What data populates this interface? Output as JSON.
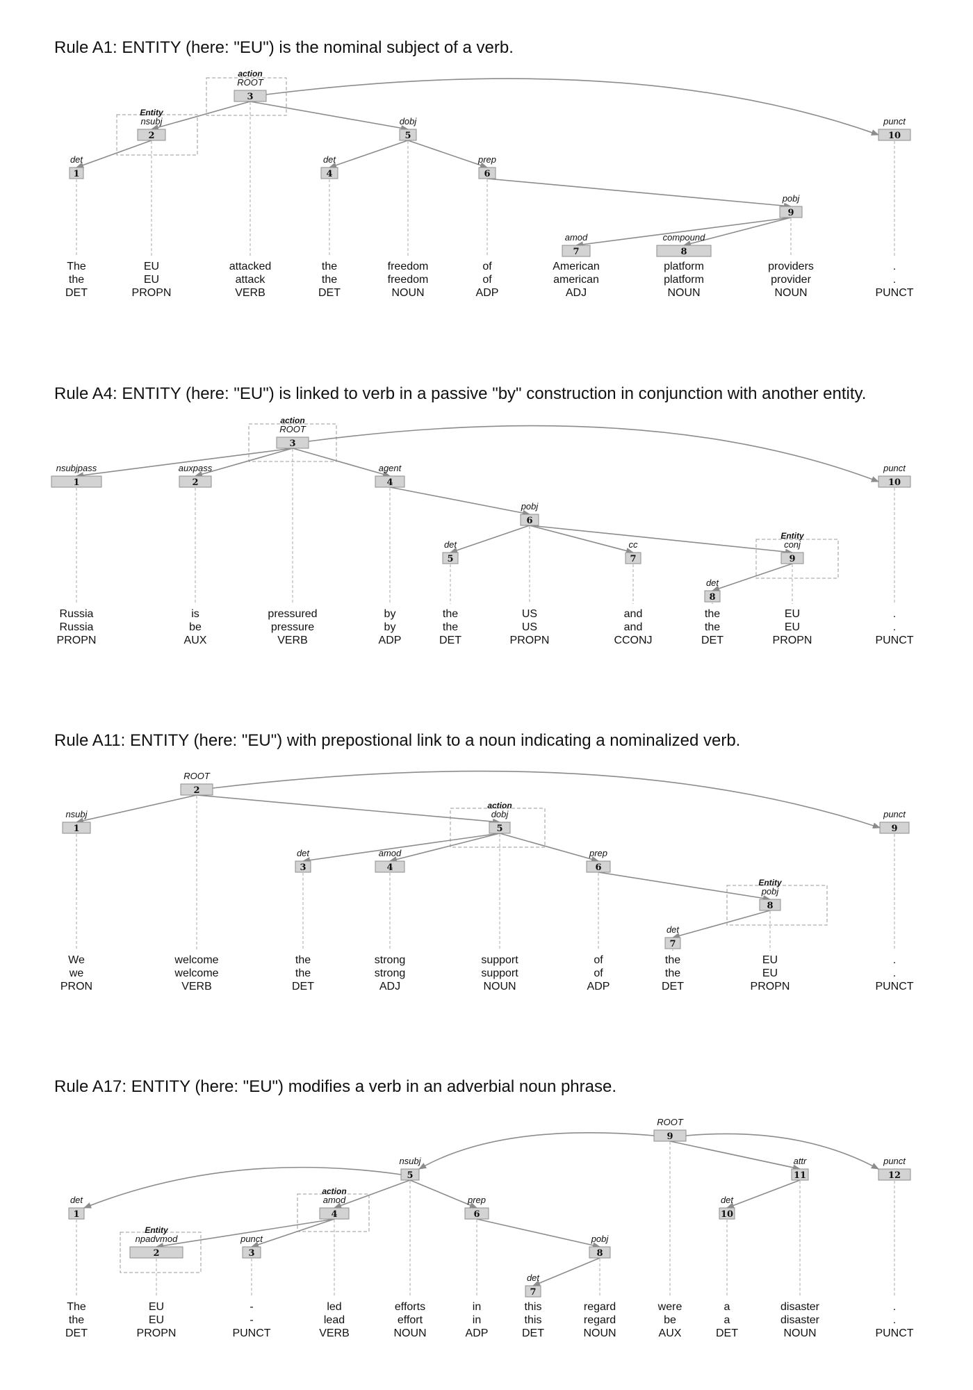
{
  "diagrams": [
    {
      "title": "Rule A1: ENTITY (here: \"EU\") is the nominal subject of a verb.",
      "tokens": [
        {
          "i": "1",
          "dep": "det",
          "text": "The",
          "lemma": "the",
          "pos": "DET"
        },
        {
          "i": "2",
          "dep": "nsubj",
          "tag": "Entity",
          "text": "EU",
          "lemma": "EU",
          "pos": "PROPN"
        },
        {
          "i": "3",
          "dep": "ROOT",
          "tag": "action",
          "text": "attacked",
          "lemma": "attack",
          "pos": "VERB"
        },
        {
          "i": "4",
          "dep": "det",
          "text": "the",
          "lemma": "the",
          "pos": "DET"
        },
        {
          "i": "5",
          "dep": "dobj",
          "text": "freedom",
          "lemma": "freedom",
          "pos": "NOUN"
        },
        {
          "i": "6",
          "dep": "prep",
          "text": "of",
          "lemma": "of",
          "pos": "ADP"
        },
        {
          "i": "7",
          "dep": "amod",
          "text": "American",
          "lemma": "american",
          "pos": "ADJ"
        },
        {
          "i": "8",
          "dep": "compound",
          "text": "platform",
          "lemma": "platform",
          "pos": "NOUN"
        },
        {
          "i": "9",
          "dep": "pobj",
          "text": "providers",
          "lemma": "provider",
          "pos": "NOUN"
        },
        {
          "i": "10",
          "dep": "punct",
          "text": ".",
          "lemma": ".",
          "pos": "PUNCT"
        }
      ],
      "edges": [
        [
          3,
          2
        ],
        [
          2,
          1
        ],
        [
          3,
          5
        ],
        [
          5,
          4
        ],
        [
          5,
          6
        ],
        [
          6,
          9
        ],
        [
          9,
          7
        ],
        [
          9,
          8
        ],
        [
          3,
          10
        ]
      ]
    },
    {
      "title": "Rule A4: ENTITY (here: \"EU\") is linked to verb in a passive \"by\" construction in conjunction with another entity.",
      "tokens": [
        {
          "i": "1",
          "dep": "nsubjpass",
          "text": "Russia",
          "lemma": "Russia",
          "pos": "PROPN"
        },
        {
          "i": "2",
          "dep": "auxpass",
          "text": "is",
          "lemma": "be",
          "pos": "AUX"
        },
        {
          "i": "3",
          "dep": "ROOT",
          "tag": "action",
          "text": "pressured",
          "lemma": "pressure",
          "pos": "VERB"
        },
        {
          "i": "4",
          "dep": "agent",
          "text": "by",
          "lemma": "by",
          "pos": "ADP"
        },
        {
          "i": "5",
          "dep": "det",
          "text": "the",
          "lemma": "the",
          "pos": "DET"
        },
        {
          "i": "6",
          "dep": "pobj",
          "text": "US",
          "lemma": "US",
          "pos": "PROPN"
        },
        {
          "i": "7",
          "dep": "cc",
          "text": "and",
          "lemma": "and",
          "pos": "CCONJ"
        },
        {
          "i": "8",
          "dep": "det",
          "text": "the",
          "lemma": "the",
          "pos": "DET"
        },
        {
          "i": "9",
          "dep": "conj",
          "tag": "Entity",
          "text": "EU",
          "lemma": "EU",
          "pos": "PROPN"
        },
        {
          "i": "10",
          "dep": "punct",
          "text": ".",
          "lemma": ".",
          "pos": "PUNCT"
        }
      ],
      "edges": [
        [
          3,
          1
        ],
        [
          3,
          2
        ],
        [
          3,
          4
        ],
        [
          4,
          6
        ],
        [
          6,
          5
        ],
        [
          6,
          7
        ],
        [
          6,
          9
        ],
        [
          9,
          8
        ],
        [
          3,
          10
        ]
      ]
    },
    {
      "title": "Rule A11: ENTITY (here: \"EU\") with prepostional link to a noun indicating a nominalized verb.",
      "tokens": [
        {
          "i": "1",
          "dep": "nsubj",
          "text": "We",
          "lemma": "we",
          "pos": "PRON"
        },
        {
          "i": "2",
          "dep": "ROOT",
          "text": "welcome",
          "lemma": "welcome",
          "pos": "VERB"
        },
        {
          "i": "3",
          "dep": "det",
          "text": "the",
          "lemma": "the",
          "pos": "DET"
        },
        {
          "i": "4",
          "dep": "amod",
          "text": "strong",
          "lemma": "strong",
          "pos": "ADJ"
        },
        {
          "i": "5",
          "dep": "dobj",
          "tag": "action",
          "text": "support",
          "lemma": "support",
          "pos": "NOUN"
        },
        {
          "i": "6",
          "dep": "prep",
          "text": "of",
          "lemma": "of",
          "pos": "ADP"
        },
        {
          "i": "7",
          "dep": "det",
          "text": "the",
          "lemma": "the",
          "pos": "DET"
        },
        {
          "i": "8",
          "dep": "pobj",
          "tag": "Entity",
          "text": "EU",
          "lemma": "EU",
          "pos": "PROPN"
        },
        {
          "i": "9",
          "dep": "punct",
          "text": ".",
          "lemma": ".",
          "pos": "PUNCT"
        }
      ],
      "edges": [
        [
          2,
          1
        ],
        [
          2,
          5
        ],
        [
          5,
          3
        ],
        [
          5,
          4
        ],
        [
          5,
          6
        ],
        [
          6,
          8
        ],
        [
          8,
          7
        ],
        [
          2,
          9
        ]
      ]
    },
    {
      "title": "Rule A17: ENTITY (here: \"EU\") modifies a verb in an adverbial noun phrase.",
      "tokens": [
        {
          "i": "1",
          "dep": "det",
          "text": "The",
          "lemma": "the",
          "pos": "DET"
        },
        {
          "i": "2",
          "dep": "npadvmod",
          "tag": "Entity",
          "text": "EU",
          "lemma": "EU",
          "pos": "PROPN"
        },
        {
          "i": "3",
          "dep": "punct",
          "text": "-",
          "lemma": "-",
          "pos": "PUNCT"
        },
        {
          "i": "4",
          "dep": "amod",
          "tag": "action",
          "text": "led",
          "lemma": "lead",
          "pos": "VERB"
        },
        {
          "i": "5",
          "dep": "nsubj",
          "text": "efforts",
          "lemma": "effort",
          "pos": "NOUN"
        },
        {
          "i": "6",
          "dep": "prep",
          "text": "in",
          "lemma": "in",
          "pos": "ADP"
        },
        {
          "i": "7",
          "dep": "det",
          "text": "this",
          "lemma": "this",
          "pos": "DET"
        },
        {
          "i": "8",
          "dep": "pobj",
          "text": "regard",
          "lemma": "regard",
          "pos": "NOUN"
        },
        {
          "i": "9",
          "dep": "ROOT",
          "text": "were",
          "lemma": "be",
          "pos": "AUX"
        },
        {
          "i": "10",
          "dep": "det",
          "text": "a",
          "lemma": "a",
          "pos": "DET"
        },
        {
          "i": "11",
          "dep": "attr",
          "text": "disaster",
          "lemma": "disaster",
          "pos": "NOUN"
        },
        {
          "i": "12",
          "dep": "punct",
          "text": ".",
          "lemma": ".",
          "pos": "PUNCT"
        }
      ],
      "edges": [
        [
          5,
          1
        ],
        [
          4,
          2
        ],
        [
          4,
          3
        ],
        [
          5,
          4
        ],
        [
          9,
          5
        ],
        [
          5,
          6
        ],
        [
          6,
          8
        ],
        [
          8,
          7
        ],
        [
          9,
          11
        ],
        [
          11,
          10
        ],
        [
          9,
          12
        ]
      ]
    }
  ]
}
